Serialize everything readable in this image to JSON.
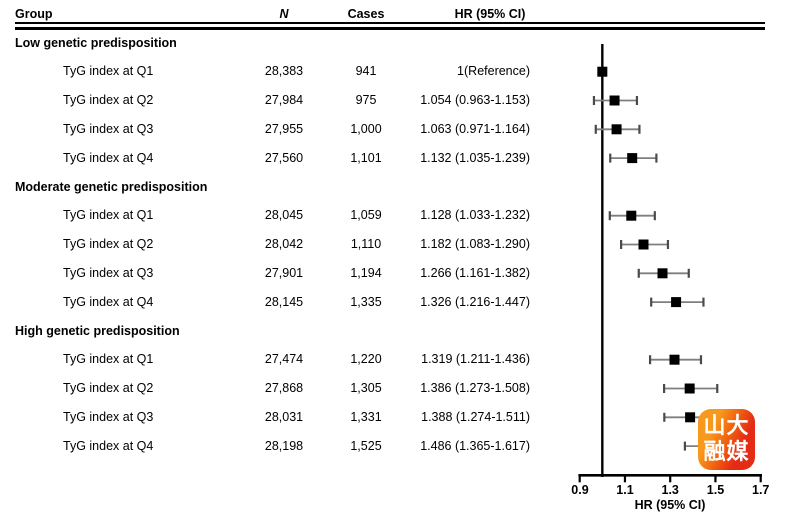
{
  "table": {
    "headers": {
      "group": "Group",
      "n": "N",
      "cases": "Cases",
      "hr": "HR (95% CI)"
    }
  },
  "axis": {
    "tick_labels": [
      "0.9",
      "1.1",
      "1.3",
      "1.5",
      "1.7"
    ],
    "label": "HR (95% CI)"
  },
  "watermark": {
    "line1": "山大",
    "line2": "融媒"
  },
  "colors": {
    "text": "#000000",
    "marker": "#000000",
    "whisker_line": "#7f7f7f",
    "whisker_cap": "#4a4a4a",
    "reference_line": "#000000",
    "logo_orange": "#f8981d",
    "logo_red": "#e52a15"
  },
  "chart_data": {
    "type": "forest",
    "xlabel": "HR (95% CI)",
    "xlim": [
      0.9,
      1.7
    ],
    "x_ticks": [
      0.9,
      1.1,
      1.3,
      1.5,
      1.7
    ],
    "reference_line": 1.0,
    "rows": [
      {
        "type": "group",
        "label": "Low genetic predisposition",
        "n": "",
        "cases": "",
        "hr_text": "",
        "hr": null,
        "lo": null,
        "hi": null
      },
      {
        "type": "item",
        "label": "TyG index at Q1",
        "n": "28,383",
        "cases": "941",
        "hr_text": "1(Reference)",
        "hr": 1.0,
        "lo": null,
        "hi": null
      },
      {
        "type": "item",
        "label": "TyG index at Q2",
        "n": "27,984",
        "cases": "975",
        "hr_text": "1.054 (0.963-1.153)",
        "hr": 1.054,
        "lo": 0.963,
        "hi": 1.153
      },
      {
        "type": "item",
        "label": "TyG index at Q3",
        "n": "27,955",
        "cases": "1,000",
        "hr_text": "1.063 (0.971-1.164)",
        "hr": 1.063,
        "lo": 0.971,
        "hi": 1.164
      },
      {
        "type": "item",
        "label": "TyG index at Q4",
        "n": "27,560",
        "cases": "1,101",
        "hr_text": "1.132 (1.035-1.239)",
        "hr": 1.132,
        "lo": 1.035,
        "hi": 1.239
      },
      {
        "type": "group",
        "label": "Moderate genetic predisposition",
        "n": "",
        "cases": "",
        "hr_text": "",
        "hr": null,
        "lo": null,
        "hi": null
      },
      {
        "type": "item",
        "label": "TyG index at Q1",
        "n": "28,045",
        "cases": "1,059",
        "hr_text": "1.128 (1.033-1.232)",
        "hr": 1.128,
        "lo": 1.033,
        "hi": 1.232
      },
      {
        "type": "item",
        "label": "TyG index at Q2",
        "n": "28,042",
        "cases": "1,110",
        "hr_text": "1.182 (1.083-1.290)",
        "hr": 1.182,
        "lo": 1.083,
        "hi": 1.29
      },
      {
        "type": "item",
        "label": "TyG index at Q3",
        "n": "27,901",
        "cases": "1,194",
        "hr_text": "1.266 (1.161-1.382)",
        "hr": 1.266,
        "lo": 1.161,
        "hi": 1.382
      },
      {
        "type": "item",
        "label": "TyG index at Q4",
        "n": "28,145",
        "cases": "1,335",
        "hr_text": "1.326 (1.216-1.447)",
        "hr": 1.326,
        "lo": 1.216,
        "hi": 1.447
      },
      {
        "type": "group",
        "label": "High genetic predisposition",
        "n": "",
        "cases": "",
        "hr_text": "",
        "hr": null,
        "lo": null,
        "hi": null
      },
      {
        "type": "item",
        "label": "TyG index at Q1",
        "n": "27,474",
        "cases": "1,220",
        "hr_text": "1.319 (1.211-1.436)",
        "hr": 1.319,
        "lo": 1.211,
        "hi": 1.436
      },
      {
        "type": "item",
        "label": "TyG index at Q2",
        "n": "27,868",
        "cases": "1,305",
        "hr_text": "1.386 (1.273-1.508)",
        "hr": 1.386,
        "lo": 1.273,
        "hi": 1.508
      },
      {
        "type": "item",
        "label": "TyG index at Q3",
        "n": "28,031",
        "cases": "1,331",
        "hr_text": "1.388 (1.274-1.511)",
        "hr": 1.388,
        "lo": 1.274,
        "hi": 1.511
      },
      {
        "type": "item",
        "label": "TyG index at Q4",
        "n": "28,198",
        "cases": "1,525",
        "hr_text": "1.486 (1.365-1.617)",
        "hr": 1.486,
        "lo": 1.365,
        "hi": 1.617
      }
    ]
  }
}
